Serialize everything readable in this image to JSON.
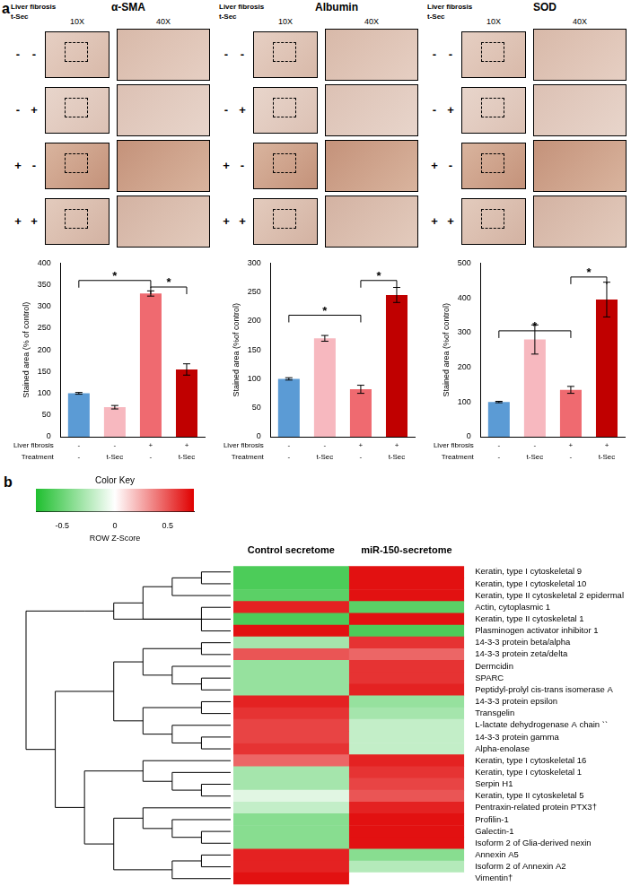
{
  "panel_labels": [
    "a",
    "b"
  ],
  "micrographs": {
    "panels": [
      "α-SMA",
      "Albumin",
      "SOD"
    ],
    "row_headers": [
      "Liver fibrosis",
      "t-Sec"
    ],
    "column_headers": [
      "10X",
      "40X"
    ],
    "rows": [
      [
        "-",
        "-"
      ],
      [
        "-",
        "+"
      ],
      [
        "+",
        "-"
      ],
      [
        "+",
        "+"
      ]
    ]
  },
  "chart_data": [
    {
      "type": "bar",
      "y_label": "Stained area (% of control)",
      "categories": [
        [
          "-",
          "-"
        ],
        [
          "-",
          "t-Sec"
        ],
        [
          "+",
          "-"
        ],
        [
          "+",
          "t-Sec"
        ]
      ],
      "category_rows": [
        "Liver fibrosis",
        "Treatment"
      ],
      "values": [
        100,
        68,
        330,
        155
      ],
      "errors": [
        2,
        4,
        6,
        13
      ],
      "colors": [
        "#5b9bd5",
        "#f7b8bf",
        "#ef6a70",
        "#c00000"
      ],
      "ylim": [
        0,
        400
      ],
      "yticks": [
        0,
        50,
        100,
        150,
        200,
        250,
        300,
        350,
        400
      ],
      "grid": false,
      "significance": [
        {
          "from": 0,
          "to": 2,
          "y": 360,
          "label": "*"
        },
        {
          "from": 2,
          "to": 3,
          "y": 345,
          "label": "*"
        }
      ]
    },
    {
      "type": "bar",
      "y_label": "Stained area (%of control)",
      "categories": [
        [
          "-",
          "-"
        ],
        [
          "-",
          "t-Sec"
        ],
        [
          "+",
          "-"
        ],
        [
          "+",
          "t-Sec"
        ]
      ],
      "category_rows": [
        "Liver fibrosis",
        "Treatment"
      ],
      "values": [
        100,
        170,
        82,
        245
      ],
      "errors": [
        2,
        5,
        7,
        13
      ],
      "colors": [
        "#5b9bd5",
        "#f7b8bf",
        "#ef6a70",
        "#c00000"
      ],
      "ylim": [
        0,
        300
      ],
      "yticks": [
        0,
        50,
        100,
        150,
        200,
        250,
        300
      ],
      "grid": false,
      "significance": [
        {
          "from": 0,
          "to": 2,
          "y": 210,
          "label": "*"
        },
        {
          "from": 2,
          "to": 3,
          "y": 270,
          "label": "*"
        }
      ]
    },
    {
      "type": "bar",
      "y_label": "Stained area (%of control)",
      "categories": [
        [
          "-",
          "-"
        ],
        [
          "-",
          "t-Sec"
        ],
        [
          "+",
          "-"
        ],
        [
          "+",
          "t-Sec"
        ]
      ],
      "category_rows": [
        "Liver fibrosis",
        "Treatment"
      ],
      "values": [
        100,
        280,
        135,
        395
      ],
      "errors": [
        2,
        42,
        10,
        50
      ],
      "colors": [
        "#5b9bd5",
        "#f7b8bf",
        "#ef6a70",
        "#c00000"
      ],
      "ylim": [
        0,
        500
      ],
      "yticks": [
        0,
        100,
        200,
        300,
        400,
        500
      ],
      "grid": false,
      "significance": [
        {
          "from": 0,
          "to": 2,
          "y": 305,
          "label": "*"
        },
        {
          "from": 2,
          "to": 3,
          "y": 460,
          "label": "*"
        }
      ]
    },
    {
      "type": "heatmap",
      "columns": [
        "Control secretome",
        "miR-150-secretome"
      ],
      "rows": [
        "Keratin, type I cytoskeletal 9",
        "Keratin, type I cytoskeletal 10",
        "Keratin, type II cytoskeletal 2 epidermal",
        "Actin, cytoplasmic 1",
        "Keratin, type II cytoskeletal 1",
        "Plasminogen activator inhibitor 1",
        "14-3-3 protein beta/alpha",
        "14-3-3 protein zeta/delta",
        "Dermcidin",
        "SPARC",
        "Peptidyl-prolyl cis-trans isomerase A",
        "14-3-3 protein epsilon",
        "Transgelin",
        "L-lactate dehydrogenase A chain ``",
        "14-3-3 protein gamma",
        "Alpha-enolase",
        "Keratin, type I cytoskeletal 16",
        "Keratin, type I cytoskeletal 1",
        "Serpin H1",
        "Keratin, type II cytoskeletal 5",
        "Pentraxin-related protein PTX3†",
        "Profilin-1",
        "Galectin-1",
        "Isoform 2 of Glia-derived nexin",
        "Annexin A5",
        "Isoform 2 of Annexin A2",
        "Vimentin†"
      ],
      "values": [
        [
          -0.6,
          0.7
        ],
        [
          -0.6,
          0.7
        ],
        [
          -0.55,
          0.7
        ],
        [
          0.65,
          -0.55
        ],
        [
          -0.6,
          0.7
        ],
        [
          0.7,
          -0.6
        ],
        [
          -0.3,
          0.6
        ],
        [
          0.5,
          0.45
        ],
        [
          -0.35,
          0.6
        ],
        [
          -0.35,
          0.6
        ],
        [
          -0.35,
          0.65
        ],
        [
          0.65,
          -0.35
        ],
        [
          0.6,
          -0.3
        ],
        [
          0.55,
          -0.2
        ],
        [
          0.55,
          -0.2
        ],
        [
          0.6,
          -0.2
        ],
        [
          0.45,
          0.65
        ],
        [
          -0.3,
          0.6
        ],
        [
          -0.3,
          0.55
        ],
        [
          -0.1,
          0.5
        ],
        [
          -0.2,
          0.65
        ],
        [
          -0.4,
          0.7
        ],
        [
          -0.4,
          0.7
        ],
        [
          -0.4,
          0.7
        ],
        [
          0.65,
          -0.4
        ],
        [
          0.65,
          -0.25
        ],
        [
          0.7,
          0
        ]
      ],
      "colorbar": {
        "title": "Color Key",
        "label": "ROW Z-Score",
        "range": [
          -0.75,
          0.75
        ],
        "ticks": [
          -0.5,
          0,
          0.5
        ],
        "colors": [
          "#1fbf2f",
          "#ffffff",
          "#e00000"
        ]
      },
      "row_dendrogram": [
        [
          [
            [
              [
                [
                  0,
                  1
                ],
                2
              ],
              4
            ],
            [
              3,
              5
            ]
          ]
        ],
        [
          [
            [
              [
                6,
                7
              ],
              [
                8,
                [
                  9,
                  10
                ]
              ]
            ],
            [
              [
                11,
                12
              ],
              [
                13,
                [
                  14,
                  15
                ]
              ]
            ]
          ],
          [
            [
              16,
              [
                17,
                [
                  18,
                  19
                ]
              ]
            ],
            [
              [
                20,
                [
                  21,
                  [
                    22,
                    23
                  ]
                ]
              ],
              [
                [
                  24,
                  25
                ],
                26
              ]
            ]
          ]
        ]
      ]
    }
  ]
}
